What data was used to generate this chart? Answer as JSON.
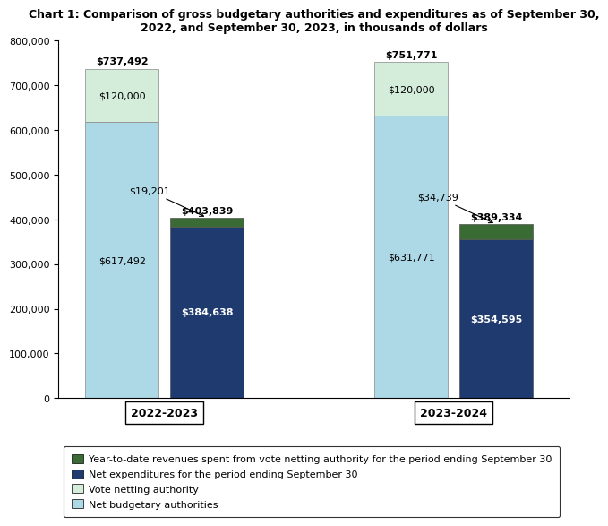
{
  "title": "Chart 1: Comparison of gross budgetary authorities and expenditures as of September 30,\n2022, and September 30, 2023, in thousands of dollars",
  "groups": [
    "2022-2023",
    "2023-2024"
  ],
  "net_budgetary_authorities": [
    617492,
    631771
  ],
  "vote_netting_authority": [
    120000,
    120000
  ],
  "net_expenditures": [
    384638,
    354595
  ],
  "ytd_revenues": [
    19201,
    34739
  ],
  "total_authority": [
    737492,
    751771
  ],
  "total_expenditures": [
    403839,
    389334
  ],
  "colors": {
    "net_budgetary": "#add8e6",
    "vote_netting": "#d4edda",
    "net_expenditures": "#1f3a6e",
    "ytd_revenues": "#3a6b35"
  },
  "ylim": [
    0,
    800000
  ],
  "yticks": [
    0,
    100000,
    200000,
    300000,
    400000,
    500000,
    600000,
    700000,
    800000
  ],
  "legend": [
    "Year-to-date revenues spent from vote netting authority for the period ending September 30",
    "Net expenditures for the period ending September 30",
    "Vote netting authority",
    "Net budgetary authorities"
  ]
}
